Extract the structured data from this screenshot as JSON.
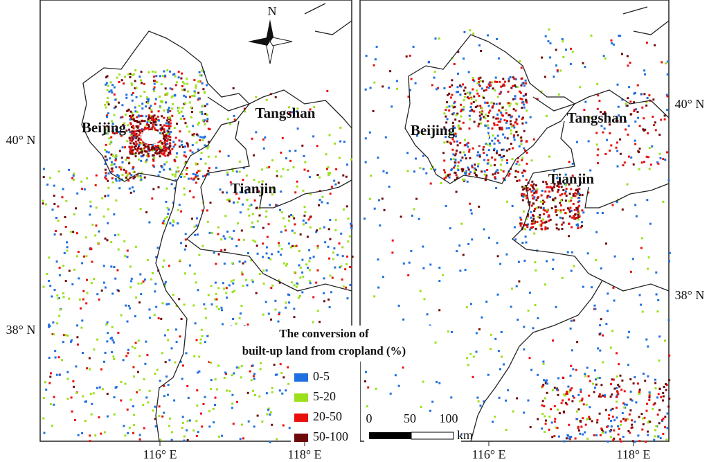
{
  "maps": [
    {
      "ticks_x": [
        "116° E",
        "118° E"
      ],
      "ticks_y": [
        "40° N",
        "38° N"
      ],
      "cities": [
        "Beijing",
        "Tangshan",
        "Tianjin"
      ]
    },
    {
      "ticks_x": [
        "116° E",
        "118° E"
      ],
      "ticks_y": [
        "40° N",
        "38° N"
      ],
      "cities": [
        "Beijing",
        "Tangshan",
        "Tianjin"
      ]
    }
  ],
  "north_arrow": "N",
  "legend": {
    "title": [
      "The conversion of",
      "built-up land from cropland (%)"
    ],
    "items": [
      {
        "label": "0-5",
        "color": "#1f6fe0"
      },
      {
        "label": "5-20",
        "color": "#9be01a"
      },
      {
        "label": "20-50",
        "color": "#e8100c"
      },
      {
        "label": "50-100",
        "color": "#6e0a0a"
      }
    ]
  },
  "scale_bar": {
    "labels": [
      "0",
      "50",
      "100"
    ],
    "unit": "km"
  }
}
